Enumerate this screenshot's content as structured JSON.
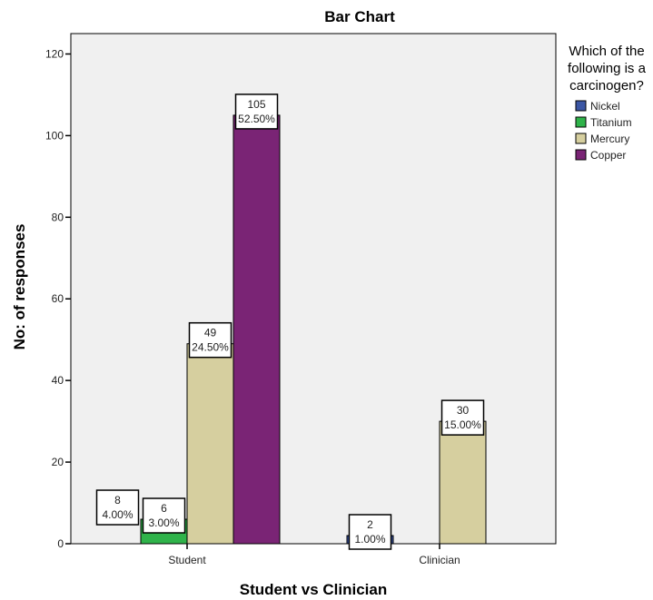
{
  "chart_data": {
    "type": "bar",
    "title": "Bar Chart",
    "xlabel": "Student vs Clinician",
    "ylabel": "No: of responses",
    "categories": [
      "Student",
      "Clinician"
    ],
    "ylim": [
      0,
      125
    ],
    "yticks": [
      0,
      20,
      40,
      60,
      80,
      100,
      120
    ],
    "grid": false,
    "legend_placement": "right",
    "legend_title": [
      "Which of the",
      "following is a",
      "carcinogen?"
    ],
    "series": [
      {
        "name": "Nickel",
        "color": "#3b56a4",
        "values": [
          8,
          2
        ],
        "percent_labels": [
          "4.00%",
          "1.00%"
        ],
        "bar_drawn": [
          false,
          true
        ]
      },
      {
        "name": "Titanium",
        "color": "#2fb34a",
        "values": [
          6,
          0
        ],
        "percent_labels": [
          "3.00%",
          null
        ],
        "bar_drawn": [
          true,
          false
        ]
      },
      {
        "name": "Mercury",
        "color": "#d6cf9f",
        "values": [
          49,
          30
        ],
        "percent_labels": [
          "24.50%",
          "15.00%"
        ],
        "bar_drawn": [
          true,
          true
        ]
      },
      {
        "name": "Copper",
        "color": "#7a2475",
        "values": [
          105,
          0
        ],
        "percent_labels": [
          "52.50%",
          null
        ],
        "bar_drawn": [
          true,
          false
        ]
      }
    ],
    "plot_background": "#f0f0f0"
  }
}
